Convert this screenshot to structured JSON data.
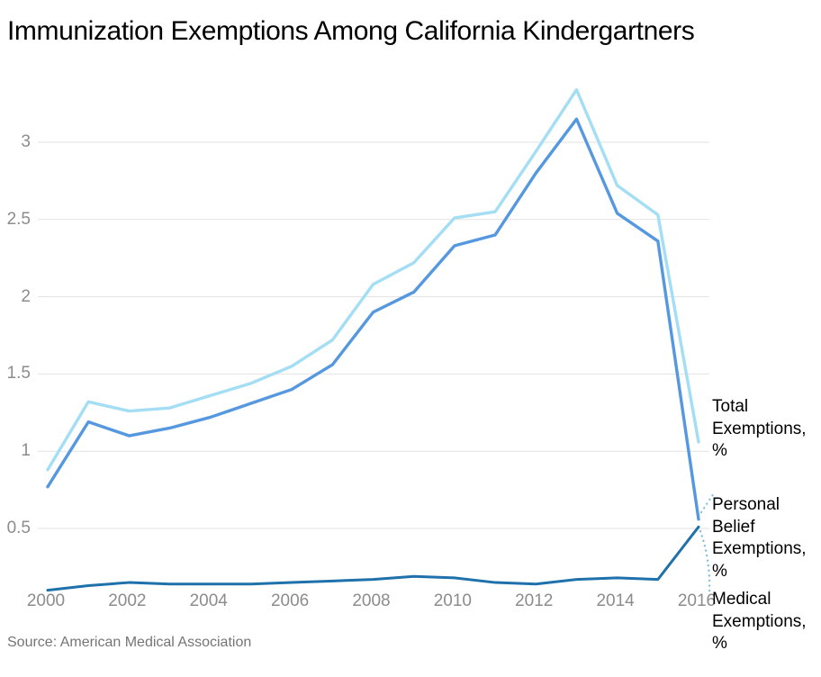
{
  "title": "Immunization Exemptions Among California Kindergartners",
  "source": "Source: American Medical Association",
  "chart_data": {
    "type": "line",
    "title": "Immunization Exemptions Among California Kindergartners",
    "xlabel": "",
    "ylabel": "",
    "x": [
      2000,
      2001,
      2002,
      2003,
      2004,
      2005,
      2006,
      2007,
      2008,
      2009,
      2010,
      2011,
      2012,
      2013,
      2014,
      2015,
      2016
    ],
    "series": [
      {
        "id": "total",
        "name": "Total Exemptions, %",
        "end_label": "Total\nExemptions,\n%",
        "color": "#a3def5",
        "values": [
          0.88,
          1.32,
          1.26,
          1.28,
          1.36,
          1.44,
          1.55,
          1.72,
          2.08,
          2.22,
          2.51,
          2.55,
          2.94,
          3.34,
          2.72,
          2.53,
          1.06
        ]
      },
      {
        "id": "personal-belief",
        "name": "Personal Belief Exemptions, %",
        "end_label": "Personal\nBelief\nExemptions,\n%",
        "color": "#5598e0",
        "values": [
          0.77,
          1.19,
          1.1,
          1.15,
          1.22,
          1.31,
          1.4,
          1.56,
          1.9,
          2.03,
          2.33,
          2.4,
          2.8,
          3.15,
          2.54,
          2.36,
          0.56
        ]
      },
      {
        "id": "medical",
        "name": "Medical Exemptions, %",
        "end_label": "Medical\nExemptions,\n%",
        "color": "#1f71ab",
        "values": [
          0.1,
          0.13,
          0.15,
          0.14,
          0.14,
          0.14,
          0.15,
          0.16,
          0.17,
          0.19,
          0.18,
          0.15,
          0.14,
          0.17,
          0.18,
          0.17,
          0.51
        ]
      }
    ],
    "x_ticks": [
      2000,
      2002,
      2004,
      2006,
      2008,
      2010,
      2012,
      2014,
      2016
    ],
    "y_ticks": [
      "0.5",
      "1",
      "1.5",
      "2",
      "2.5",
      "3"
    ],
    "ylim": [
      0,
      3.5
    ],
    "grid": "horizontal",
    "legend_position": "end-of-line-labels-right",
    "gridline_color": "#e2e2e2",
    "tick_label_color": "#8c8c8c",
    "leader_line_color": "#7cb9e2"
  }
}
